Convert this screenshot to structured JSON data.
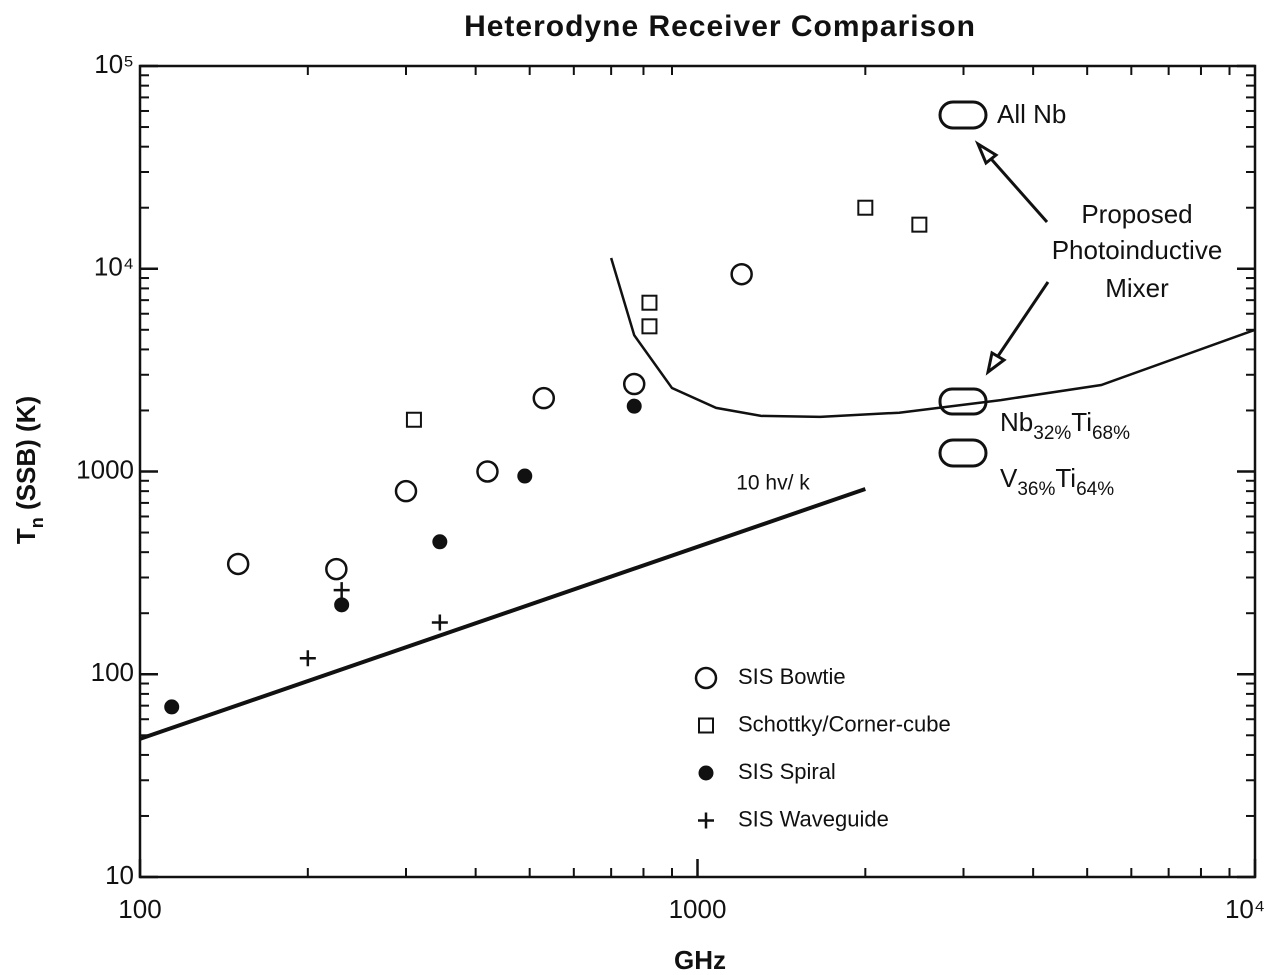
{
  "chart_data": {
    "type": "scatter",
    "title": "Heterodyne  Receiver  Comparison",
    "xlabel": "GHz",
    "ylabel": {
      "main": "T",
      "sub": "n",
      "rest": " (SSB)  (K)"
    },
    "log_x": true,
    "log_y": true,
    "xlim": [
      100,
      10000
    ],
    "ylim": [
      10,
      100000
    ],
    "xticks": [
      100,
      1000,
      {
        "value": 10000,
        "label": "10⁴"
      }
    ],
    "yticks": [
      10,
      100,
      1000,
      {
        "value": 10000,
        "label": "10⁴"
      },
      {
        "value": 100000,
        "label": "10⁵"
      }
    ],
    "legend": "lower right",
    "series": [
      {
        "name": "SIS Bowtie",
        "marker": "open-circle",
        "color": "#111",
        "x": [
          150,
          225,
          300,
          420,
          530,
          770,
          1200
        ],
        "values": [
          350,
          330,
          800,
          1000,
          2300,
          2700,
          9400
        ]
      },
      {
        "name": "Schottky/Corner-cube",
        "marker": "open-square",
        "color": "#111",
        "x": [
          310,
          820,
          820,
          2000,
          2500
        ],
        "values": [
          1800,
          6800,
          5200,
          20000,
          16500
        ]
      },
      {
        "name": "SIS Spiral",
        "marker": "filled-circle",
        "color": "#111",
        "x": [
          114,
          230,
          345,
          490,
          770
        ],
        "values": [
          69,
          220,
          450,
          950,
          2100
        ]
      },
      {
        "name": "SIS Waveguide",
        "marker": "plus",
        "color": "#111",
        "x": [
          200,
          230,
          345
        ],
        "values": [
          120,
          260,
          180
        ]
      }
    ],
    "lines": [
      {
        "width": 4,
        "x": [
          100,
          2000
        ],
        "values": [
          48,
          820
        ]
      },
      {
        "width": 2.5,
        "x": [
          700,
          770,
          900,
          1080,
          1300,
          1660,
          2300,
          3500,
          5300,
          10000
        ],
        "values": [
          11300,
          4700,
          2580,
          2060,
          1880,
          1860,
          1950,
          2250,
          2670,
          5000
        ]
      }
    ],
    "annotations": [
      "All  Nb",
      "Proposed",
      "Photoinductive",
      "Mixer",
      "10  hv/ k"
    ],
    "alloy_labels": [
      {
        "parts": [
          "Nb",
          "32%",
          "Ti",
          "68%"
        ]
      },
      {
        "parts": [
          "V",
          "36%",
          "Ti",
          "64%"
        ]
      }
    ]
  }
}
